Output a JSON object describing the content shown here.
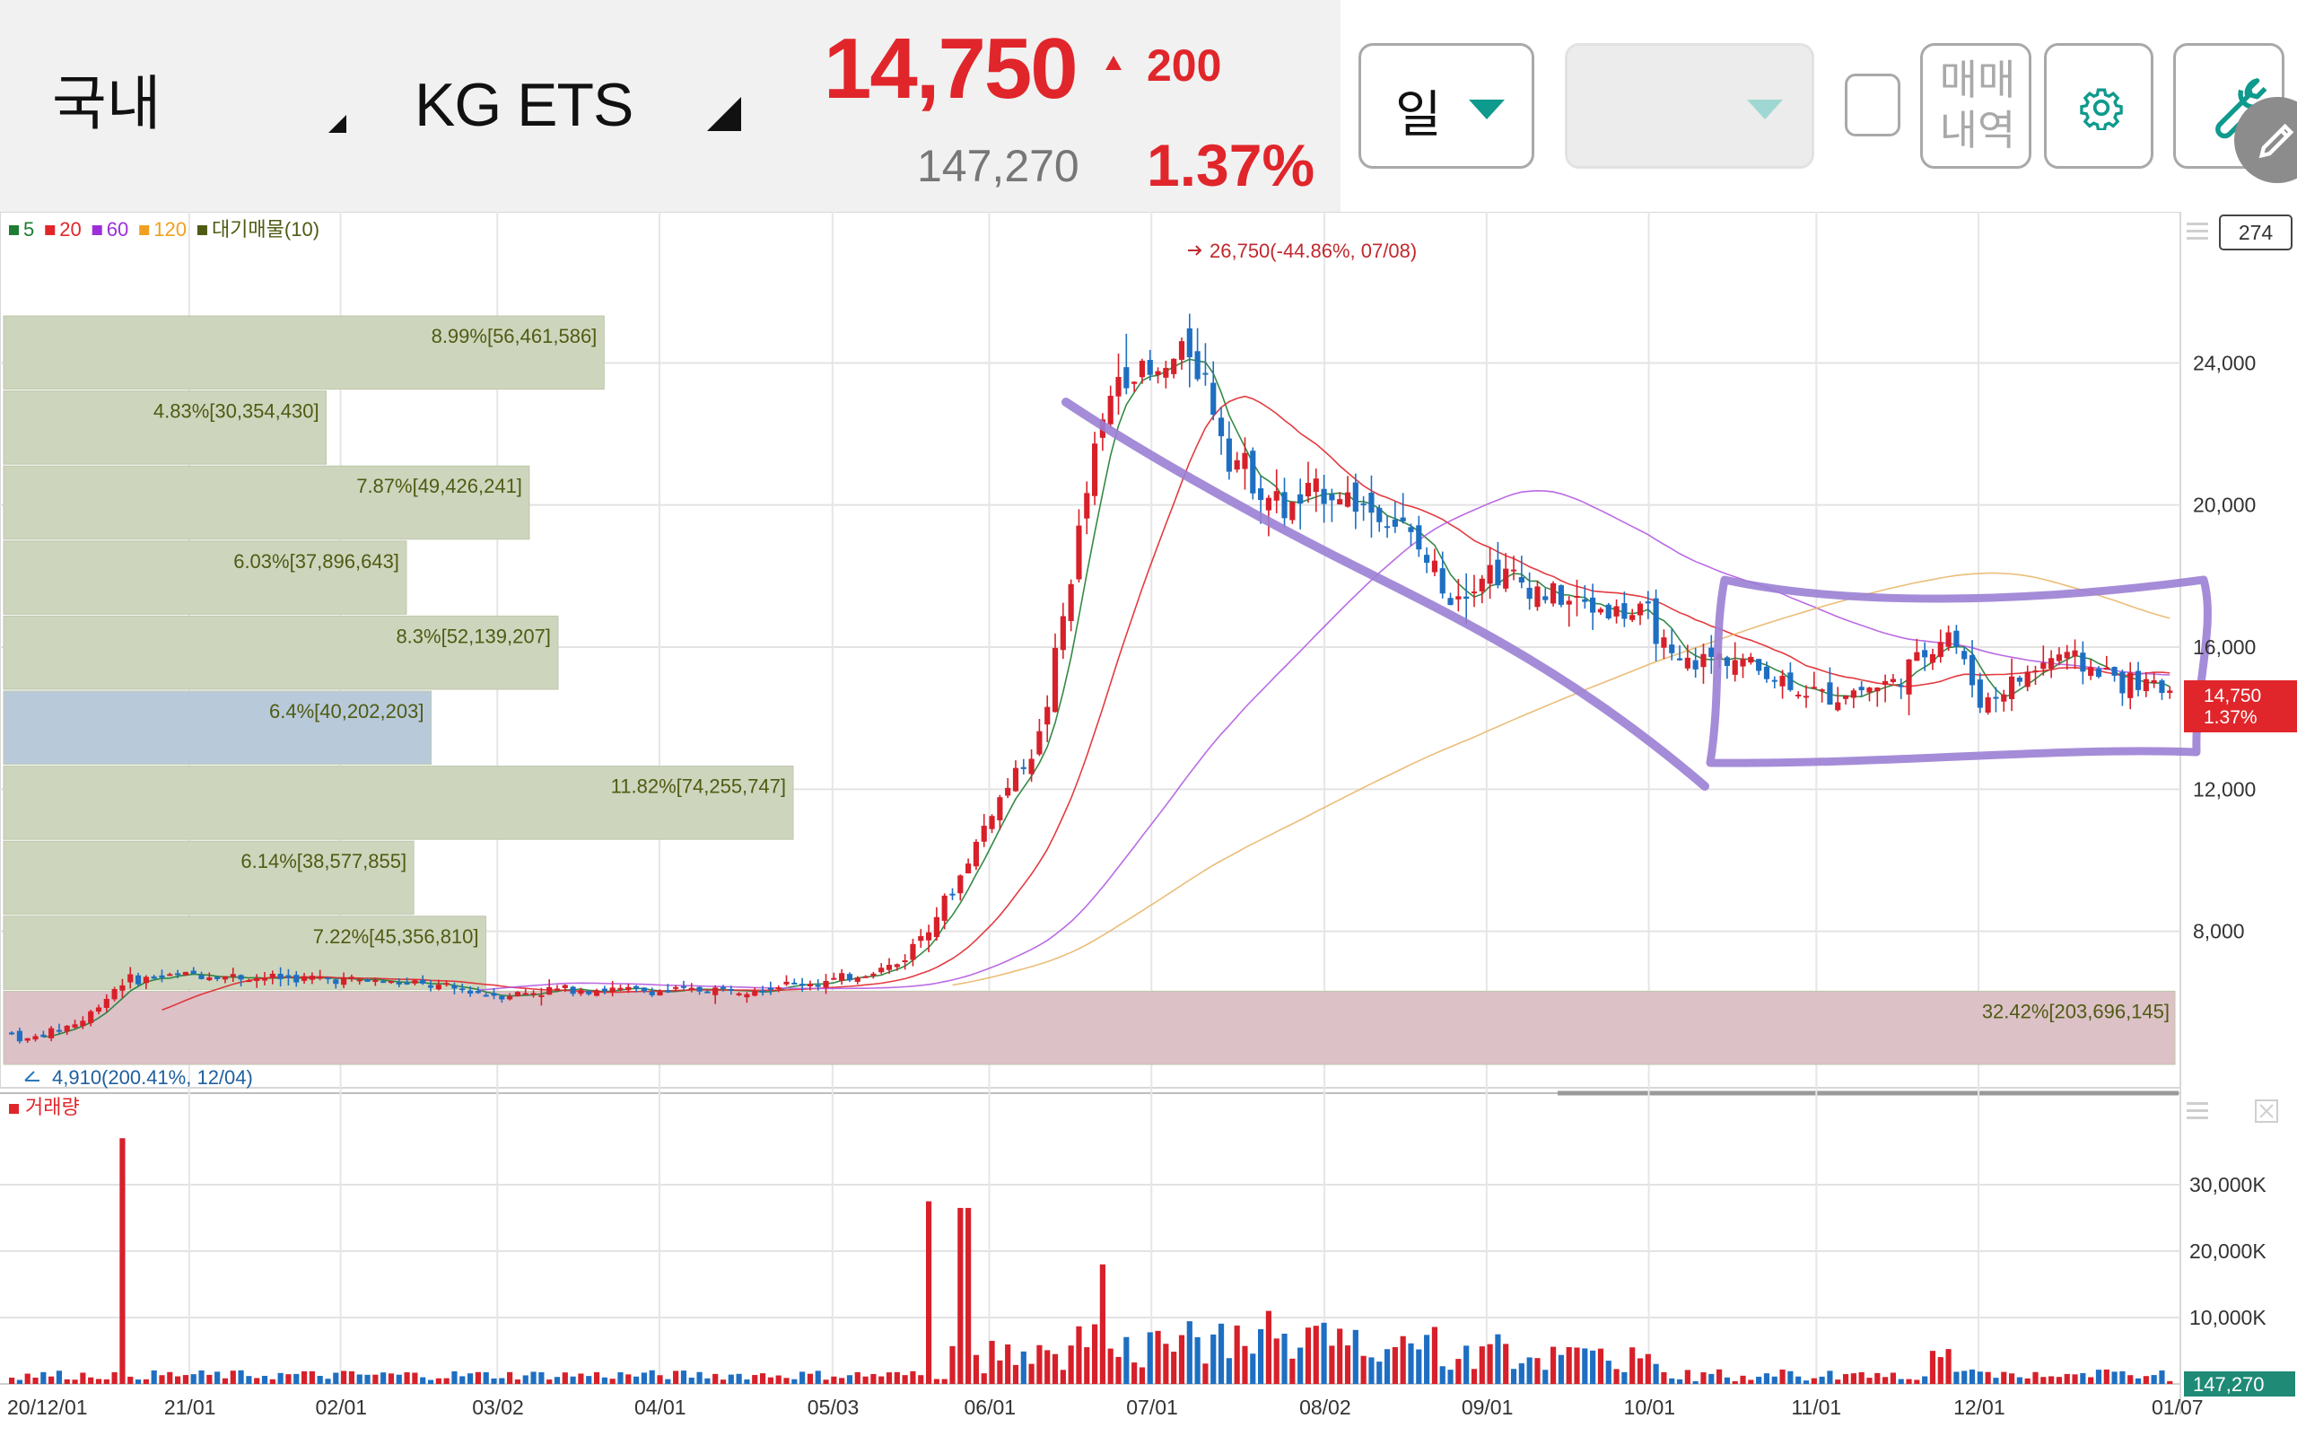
{
  "header": {
    "market": "국내",
    "stock_name": "KG ETS",
    "price": "14,750",
    "change": "200",
    "change_pct": "1.37%",
    "volume": "147,270",
    "period_label": "일",
    "trade_history_label": "매매\n내역",
    "colors": {
      "up": "#e0262b",
      "accent": "#0e9a8c"
    }
  },
  "legend": {
    "items": [
      {
        "label": "5",
        "color": "#1e7d32"
      },
      {
        "label": "20",
        "color": "#e0262b"
      },
      {
        "label": "60",
        "color": "#9b30d9"
      },
      {
        "label": "120",
        "color": "#f0a020"
      },
      {
        "label": "대기매물(10)",
        "color": "#4f5b12"
      }
    ],
    "counter": "274",
    "volume_legend": "거래량"
  },
  "chart_data": {
    "type": "candlestick",
    "y_axis": {
      "min": 4000,
      "max": 28000,
      "ticks": [
        "24,000",
        "20,000",
        "16,000",
        "12,000",
        "8,000"
      ]
    },
    "volume_axis": {
      "max": 40000,
      "ticks": [
        "30,000K",
        "20,000K",
        "10,000K"
      ]
    },
    "x_ticks": [
      "20/12/01",
      "21/01",
      "02/01",
      "03/02",
      "04/01",
      "05/03",
      "06/01",
      "07/01",
      "08/02",
      "09/01",
      "10/01",
      "11/01",
      "12/01",
      "01/07"
    ],
    "current_price_label": "14,750",
    "current_pct_label": "1.37%",
    "current_volume_label": "147,270",
    "high_annotation": "26,750(-44.86%, 07/08)",
    "low_annotation": "4,910(200.41%, 12/04)",
    "volume_profile": [
      {
        "label": "8.99%[56,461,586]",
        "pct": 8.99
      },
      {
        "label": "4.83%[30,354,430]",
        "pct": 4.83
      },
      {
        "label": "7.87%[49,426,241]",
        "pct": 7.87
      },
      {
        "label": "6.03%[37,896,643]",
        "pct": 6.03
      },
      {
        "label": "8.3%[52,139,207]",
        "pct": 8.3
      },
      {
        "label": "6.4%[40,202,203]",
        "pct": 6.4,
        "current": true
      },
      {
        "label": "11.82%[74,255,747]",
        "pct": 11.82
      },
      {
        "label": "6.14%[38,577,855]",
        "pct": 6.14
      },
      {
        "label": "7.22%[45,356,810]",
        "pct": 7.22
      },
      {
        "label": "32.42%[203,696,145]",
        "pct": 32.42
      }
    ],
    "price_points": [
      {
        "date": "20/12/01",
        "close": 5200
      },
      {
        "date": "20/12/04",
        "close": 4910
      },
      {
        "date": "20/12/15",
        "close": 5500
      },
      {
        "date": "20/12/22",
        "close": 6600
      },
      {
        "date": "21/01/04",
        "close": 6800
      },
      {
        "date": "21/01/15",
        "close": 6700
      },
      {
        "date": "21/02/01",
        "close": 6650
      },
      {
        "date": "21/02/15",
        "close": 6500
      },
      {
        "date": "21/03/02",
        "close": 6200
      },
      {
        "date": "21/03/15",
        "close": 6400
      },
      {
        "date": "21/04/01",
        "close": 6300
      },
      {
        "date": "21/04/15",
        "close": 6400
      },
      {
        "date": "21/05/03",
        "close": 6600
      },
      {
        "date": "21/05/15",
        "close": 7100
      },
      {
        "date": "21/05/25",
        "close": 9200
      },
      {
        "date": "21/06/01",
        "close": 11400
      },
      {
        "date": "21/06/10",
        "close": 13500
      },
      {
        "date": "21/06/20",
        "close": 21500
      },
      {
        "date": "21/06/25",
        "close": 24000
      },
      {
        "date": "21/07/01",
        "close": 23500
      },
      {
        "date": "21/07/08",
        "close": 24500
      },
      {
        "date": "21/07/15",
        "close": 21500
      },
      {
        "date": "21/07/25",
        "close": 19800
      },
      {
        "date": "21/08/02",
        "close": 20500
      },
      {
        "date": "21/08/15",
        "close": 19500
      },
      {
        "date": "21/08/25",
        "close": 17500
      },
      {
        "date": "21/09/01",
        "close": 18200
      },
      {
        "date": "21/09/15",
        "close": 17300
      },
      {
        "date": "21/10/01",
        "close": 16800
      },
      {
        "date": "21/10/05",
        "close": 15400
      },
      {
        "date": "21/10/15",
        "close": 15800
      },
      {
        "date": "21/11/01",
        "close": 14600
      },
      {
        "date": "21/11/15",
        "close": 15000
      },
      {
        "date": "21/11/25",
        "close": 16500
      },
      {
        "date": "21/12/01",
        "close": 14400
      },
      {
        "date": "21/12/15",
        "close": 15800
      },
      {
        "date": "21/12/28",
        "close": 15000
      },
      {
        "date": "22/01/07",
        "close": 14750
      }
    ],
    "volume_points": [
      {
        "date": "20/12/22",
        "volume": 37000
      },
      {
        "date": "21/05/20",
        "volume": 27500
      },
      {
        "date": "21/05/27",
        "volume": 26500
      },
      {
        "date": "21/06/22",
        "volume": 18000
      },
      {
        "date": "21/07/22",
        "volume": 11000
      },
      {
        "date": "21/09/30",
        "volume": 4500
      }
    ]
  }
}
